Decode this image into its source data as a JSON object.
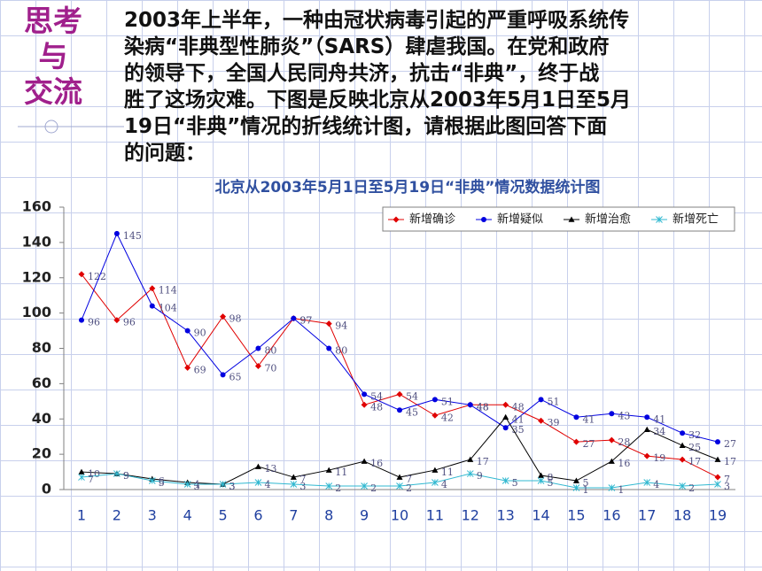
{
  "header": {
    "title_lines": [
      "思考",
      "与",
      "交流"
    ]
  },
  "paragraph_lines": [
    "2003年上半年，一种由冠状病毒引起的严重呼吸系统传",
    "染病“非典型性肺炎”（SARS）肆虐我国。在党和政府",
    "的领导下，全国人民同舟共济，抗击“非典”，终于战",
    "胜了这场灾难。下图是反映北京从2003年5月1日至5月",
    "19日“非典”情况的折线统计图，请根据此图回答下面",
    "的问题："
  ],
  "chart_data": {
    "type": "line",
    "title": "北京从2003年5月1日至5月19日“非典”情况数据统计图",
    "categories": [
      "1",
      "2",
      "3",
      "4",
      "5",
      "6",
      "7",
      "8",
      "9",
      "10",
      "11",
      "12",
      "13",
      "14",
      "15",
      "16",
      "17",
      "18",
      "19"
    ],
    "series": [
      {
        "name": "新增确诊",
        "color": "#e00000",
        "marker": "diamond",
        "values": [
          122,
          96,
          114,
          69,
          98,
          70,
          97,
          94,
          48,
          54,
          42,
          48,
          48,
          39,
          27,
          28,
          19,
          17,
          7
        ]
      },
      {
        "name": "新增疑似",
        "color": "#0000e0",
        "marker": "circle",
        "values": [
          96,
          145,
          104,
          90,
          65,
          80,
          97,
          80,
          54,
          45,
          51,
          48,
          35,
          51,
          41,
          43,
          41,
          32,
          27
        ]
      },
      {
        "name": "新增治愈",
        "color": "#000000",
        "marker": "triangle",
        "values": [
          10,
          9,
          6,
          4,
          3,
          13,
          7,
          11,
          16,
          7,
          11,
          17,
          41,
          8,
          5,
          16,
          34,
          25,
          17
        ]
      },
      {
        "name": "新增死亡",
        "color": "#30b8d0",
        "marker": "cross",
        "values": [
          7,
          9,
          5,
          3,
          3,
          4,
          3,
          2,
          2,
          2,
          4,
          9,
          5,
          5,
          1,
          1,
          4,
          2,
          3
        ]
      }
    ],
    "ylim": [
      0,
      160
    ],
    "yticks": [
      0,
      20,
      40,
      60,
      80,
      100,
      120,
      140,
      160
    ],
    "grid": false,
    "legend": "top-right",
    "data_labels": true
  }
}
